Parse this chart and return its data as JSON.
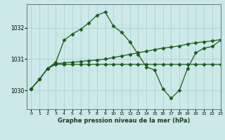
{
  "title": "Graphe pression niveau de la mer (hPa)",
  "bg_color": "#cce8e8",
  "grid_color": "#aacccc",
  "line_color": "#1a5c1a",
  "xlim": [
    -0.5,
    23
  ],
  "ylim": [
    1029.4,
    1032.75
  ],
  "yticks": [
    1030,
    1031,
    1032
  ],
  "xticks": [
    0,
    1,
    2,
    3,
    4,
    5,
    6,
    7,
    8,
    9,
    10,
    11,
    12,
    13,
    14,
    15,
    16,
    17,
    18,
    19,
    20,
    21,
    22,
    23
  ],
  "series_main": {
    "x": [
      0,
      1,
      2,
      3,
      4,
      5,
      6,
      7,
      8,
      9,
      10,
      11,
      12,
      13,
      14,
      15,
      16,
      17,
      18,
      19,
      20,
      21,
      22,
      23
    ],
    "y": [
      1030.05,
      1030.35,
      1030.7,
      1030.9,
      1031.6,
      1031.8,
      1031.95,
      1032.15,
      1032.4,
      1032.5,
      1032.05,
      1031.85,
      1031.55,
      1031.15,
      1030.75,
      1030.65,
      1030.05,
      1029.75,
      1030.0,
      1030.7,
      1031.2,
      1031.35,
      1031.4,
      1031.6
    ]
  },
  "series_mid": {
    "x": [
      0,
      1,
      2,
      3,
      4,
      5,
      6,
      7,
      8,
      9,
      10,
      11,
      12,
      13,
      14,
      15,
      16,
      17,
      18,
      19,
      20,
      21,
      22,
      23
    ],
    "y": [
      1030.05,
      1030.35,
      1030.7,
      1030.85,
      1030.88,
      1030.9,
      1030.92,
      1030.95,
      1030.97,
      1031.0,
      1031.05,
      1031.1,
      1031.15,
      1031.2,
      1031.25,
      1031.3,
      1031.35,
      1031.38,
      1031.42,
      1031.48,
      1031.52,
      1031.55,
      1031.58,
      1031.62
    ]
  },
  "series_flat": {
    "x": [
      0,
      1,
      2,
      3,
      4,
      5,
      6,
      7,
      8,
      9,
      10,
      11,
      12,
      13,
      14,
      15,
      16,
      17,
      18,
      19,
      20,
      21,
      22,
      23
    ],
    "y": [
      1030.05,
      1030.35,
      1030.7,
      1030.83,
      1030.83,
      1030.83,
      1030.83,
      1030.83,
      1030.83,
      1030.83,
      1030.83,
      1030.83,
      1030.83,
      1030.83,
      1030.83,
      1030.83,
      1030.83,
      1030.83,
      1030.83,
      1030.83,
      1030.83,
      1030.83,
      1030.83,
      1030.83
    ]
  }
}
